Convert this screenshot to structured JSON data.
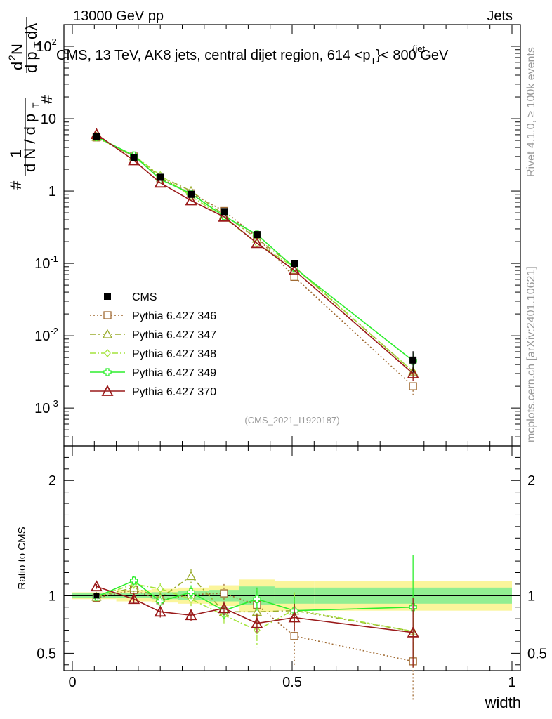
{
  "header": {
    "energy_label": "13000 GeV pp",
    "category_label": "Jets"
  },
  "side_text": {
    "rivet": "Rivet 4.1.0, ≥ 100k events",
    "mcplots": "mcplots.cern.ch [arXiv:2401.10621]"
  },
  "chart_data": {
    "type": "line",
    "title": "CMS, 13 TeV, AK8 jets, central dijet region, 614 <p",
    "title_sub": "T",
    "title_sup": "{jet",
    "title_tail": "}< 800 GeV",
    "ylabel_main": "# 1/(dN/dp_T) d²N/(dp_T dλ)",
    "ylabel_ratio": "Ratio to CMS",
    "xlabel": "width",
    "analysis_id": "(CMS_2021_I1920187)",
    "xlim": [
      0,
      1
    ],
    "ylim_main": [
      0.0003,
      200
    ],
    "ylim_ratio": [
      0.35,
      2.3
    ],
    "x_ticks": [
      "0",
      "0.5",
      "1"
    ],
    "y_ticks_main": [
      "10^-3",
      "10^-2",
      "10^-1",
      "1",
      "10",
      "10^2"
    ],
    "y_ticks_ratio": [
      "0.5",
      "1",
      "2"
    ],
    "x": [
      0.055,
      0.14,
      0.2,
      0.27,
      0.345,
      0.42,
      0.505,
      0.775
    ],
    "data": {
      "name": "CMS",
      "values": [
        5.6,
        2.9,
        1.55,
        0.9,
        0.52,
        0.25,
        0.1,
        0.0046
      ],
      "errors": [
        0.2,
        0.12,
        0.08,
        0.05,
        0.04,
        0.025,
        0.012,
        0.0015
      ]
    },
    "band_edges": [
      0.0,
      0.1,
      0.18,
      0.24,
      0.31,
      0.38,
      0.46,
      0.55,
      1.0
    ],
    "band_inner": [
      0.02,
      0.02,
      0.03,
      0.04,
      0.05,
      0.08,
      0.07,
      0.07
    ],
    "band_outer": [
      0.03,
      0.05,
      0.06,
      0.07,
      0.09,
      0.14,
      0.13,
      0.13
    ],
    "series": [
      {
        "name": "Pythia 6.427 346",
        "color": "#a06a32",
        "marker": "square",
        "dash": "2,3",
        "values": [
          5.5,
          3.0,
          1.5,
          0.93,
          0.53,
          0.23,
          0.065,
          0.002
        ],
        "ratio": [
          0.98,
          1.05,
          0.96,
          1.01,
          1.02,
          0.92,
          0.65,
          0.43
        ],
        "ratio_err": [
          0.02,
          0.04,
          0.05,
          0.06,
          0.08,
          0.15,
          0.25,
          0.35
        ]
      },
      {
        "name": "Pythia 6.427 347",
        "color": "#9aac2d",
        "marker": "triangle",
        "dash": "8,4,2,4",
        "values": [
          5.6,
          3.0,
          1.6,
          1.0,
          0.47,
          0.22,
          0.09,
          0.0032
        ],
        "ratio": [
          0.99,
          1.07,
          0.98,
          1.17,
          0.86,
          0.86,
          0.87,
          0.69
        ],
        "ratio_err": [
          0.02,
          0.04,
          0.05,
          0.06,
          0.07,
          0.1,
          0.15,
          0.3
        ]
      },
      {
        "name": "Pythia 6.427 348",
        "color": "#a4e43c",
        "marker": "diamond",
        "dash": "8,3,2,3",
        "values": [
          5.5,
          3.1,
          1.65,
          0.85,
          0.43,
          0.19,
          0.088,
          0.0032
        ],
        "ratio": [
          0.99,
          1.1,
          1.06,
          0.97,
          0.83,
          0.7,
          0.88,
          0.69
        ],
        "ratio_err": [
          0.02,
          0.04,
          0.05,
          0.06,
          0.07,
          0.15,
          0.15,
          0.3
        ]
      },
      {
        "name": "Pythia 6.427 349",
        "color": "#2dee2d",
        "marker": "cross",
        "dash": "",
        "values": [
          5.6,
          3.1,
          1.45,
          0.92,
          0.45,
          0.25,
          0.087,
          0.0045
        ],
        "ratio": [
          0.99,
          1.13,
          0.95,
          1.03,
          0.87,
          0.97,
          0.87,
          0.9
        ],
        "ratio_err": [
          0.02,
          0.04,
          0.05,
          0.06,
          0.07,
          0.1,
          0.12,
          0.45
        ]
      },
      {
        "name": "Pythia 6.427 370",
        "color": "#9a1a1a",
        "marker": "triangle-open",
        "dash": "",
        "values": [
          6.1,
          2.65,
          1.3,
          0.74,
          0.44,
          0.19,
          0.08,
          0.003
        ],
        "ratio": [
          1.08,
          0.97,
          0.86,
          0.83,
          0.89,
          0.76,
          0.81,
          0.68
        ],
        "ratio_err": [
          0.02,
          0.04,
          0.05,
          0.05,
          0.06,
          0.08,
          0.12,
          0.3
        ]
      }
    ]
  }
}
